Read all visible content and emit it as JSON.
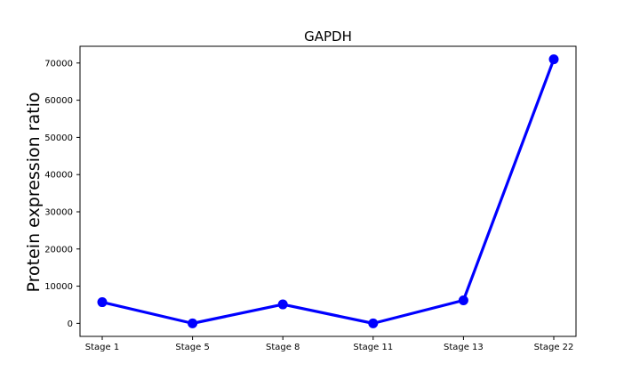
{
  "chart_data": {
    "type": "line",
    "title": "GAPDH",
    "xlabel": "",
    "ylabel": "Protein expression ratio",
    "categories": [
      "Stage 1",
      "Stage 5",
      "Stage 8",
      "Stage 11",
      "Stage 13",
      "Stage 22"
    ],
    "series": [
      {
        "values": [
          5700,
          0,
          5100,
          0,
          6200,
          71000
        ],
        "color": "#0000ff"
      }
    ],
    "ylim": [
      -3500,
      74500
    ],
    "yticks": [
      0,
      10000,
      20000,
      30000,
      40000,
      50000,
      60000,
      70000
    ],
    "ytick_labels": [
      "0",
      "10000",
      "20000",
      "30000",
      "40000",
      "50000",
      "60000",
      "70000"
    ],
    "grid": false,
    "legend": "none"
  }
}
